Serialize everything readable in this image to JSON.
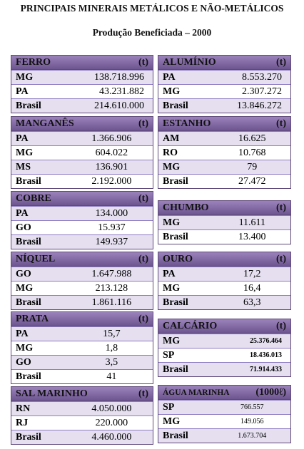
{
  "header": {
    "title": "PRINCIPAIS MINERAIS METÁLICOS E NÃO-METÁLICOS",
    "subtitle": "Produção Beneficiada – 2000"
  },
  "tables": [
    {
      "name": "FERRO",
      "unit": "(t)",
      "rows": [
        [
          "MG",
          "138.718.996"
        ],
        [
          "PA",
          "43.231.882"
        ],
        [
          "Brasil",
          "214.610.000"
        ]
      ]
    },
    {
      "name": "ALUMÍNIO",
      "unit": "(t)",
      "rows": [
        [
          "PA",
          "8.553.270"
        ],
        [
          "MG",
          "2.307.272"
        ],
        [
          "Brasil",
          "13.846.272"
        ]
      ]
    },
    {
      "name": "MANGANÊS",
      "unit": "(t)",
      "rows": [
        [
          "PA",
          "1.366.906"
        ],
        [
          "MG",
          "604.022"
        ],
        [
          "MS",
          "136.901"
        ],
        [
          "Brasil",
          "2.192.000"
        ]
      ]
    },
    {
      "name": "ESTANHO",
      "unit": "(t)",
      "rows": [
        [
          "AM",
          "16.625"
        ],
        [
          "RO",
          "10.768"
        ],
        [
          "MG",
          "79"
        ],
        [
          "Brasil",
          "27.472"
        ]
      ]
    },
    {
      "name": "COBRE",
      "unit": "(t)",
      "rows": [
        [
          "PA",
          "134.000"
        ],
        [
          "GO",
          "15.937"
        ],
        [
          "Brasil",
          "149.937"
        ]
      ]
    },
    {
      "name": "CHUMBO",
      "unit": "(t)",
      "rows": [
        [
          "MG",
          "11.611"
        ],
        [
          "Brasil",
          "13.400"
        ]
      ]
    },
    {
      "name": "NÍQUEL",
      "unit": "(t)",
      "rows": [
        [
          "GO",
          "1.647.988"
        ],
        [
          "MG",
          "213.128"
        ],
        [
          "Brasil",
          "1.861.116"
        ]
      ]
    },
    {
      "name": "OURO",
      "unit": "(t)",
      "rows": [
        [
          "PA",
          "17,2"
        ],
        [
          "MG",
          "16,4"
        ],
        [
          "Brasil",
          "63,3"
        ]
      ]
    },
    {
      "name": "PRATA",
      "unit": "(t)",
      "rows": [
        [
          "PA",
          "15,7"
        ],
        [
          "MG",
          "1,8"
        ],
        [
          "GO",
          "3,5"
        ],
        [
          "Brasil",
          "41"
        ]
      ]
    },
    {
      "name": "CALCÁRIO",
      "unit": "(t)",
      "rows": [
        [
          "MG",
          "25.376.464"
        ],
        [
          "SP",
          "18.436.013"
        ],
        [
          "Brasil",
          "71.914.433"
        ]
      ]
    },
    {
      "name": "SAL MARINHO",
      "unit": "(t)",
      "rows": [
        [
          "RN",
          "4.050.000"
        ],
        [
          "RJ",
          "220.000"
        ],
        [
          "Brasil",
          "4.460.000"
        ]
      ]
    },
    {
      "name": "ÁGUA MARINHA",
      "unit": "(1000ℓ)",
      "rows": [
        [
          "SP",
          "766.557"
        ],
        [
          "MG",
          "149.056"
        ],
        [
          "Brasil",
          "1.673.704"
        ]
      ]
    }
  ]
}
